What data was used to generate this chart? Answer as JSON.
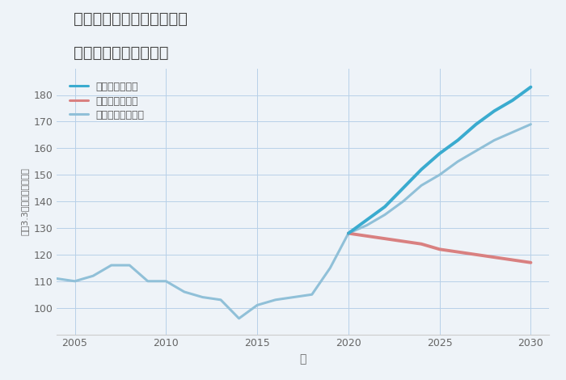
{
  "title_line1": "兵庫県西宮市今津山中町の",
  "title_line2": "中古戸建ての価格推移",
  "xlabel": "年",
  "ylabel": "坪（3.3㎡）単価（万円）",
  "bg_color": "#eef3f8",
  "grid_color": "#b8d0e8",
  "normal_color": "#90c0d8",
  "good_color": "#3aabcf",
  "bad_color": "#d98080",
  "years_historical": [
    2004,
    2005,
    2006,
    2007,
    2008,
    2009,
    2010,
    2011,
    2012,
    2013,
    2014,
    2015,
    2016,
    2017,
    2018,
    2019,
    2020
  ],
  "values_historical": [
    111,
    110,
    112,
    116,
    116,
    110,
    110,
    106,
    104,
    103,
    96,
    101,
    103,
    104,
    105,
    115,
    128
  ],
  "years_forecast": [
    2020,
    2021,
    2022,
    2023,
    2024,
    2025,
    2026,
    2027,
    2028,
    2029,
    2030
  ],
  "values_good": [
    128,
    133,
    138,
    145,
    152,
    158,
    163,
    169,
    174,
    178,
    183
  ],
  "values_bad": [
    128,
    127,
    126,
    125,
    124,
    122,
    121,
    120,
    119,
    118,
    117
  ],
  "values_normal": [
    128,
    131,
    135,
    140,
    146,
    150,
    155,
    159,
    163,
    166,
    169
  ],
  "ylim": [
    90,
    190
  ],
  "xlim": [
    2004,
    2031
  ],
  "yticks": [
    100,
    110,
    120,
    130,
    140,
    150,
    160,
    170,
    180
  ],
  "xticks": [
    2005,
    2010,
    2015,
    2020,
    2025,
    2030
  ],
  "legend_labels": [
    "グッドシナリオ",
    "バッドシナリオ",
    "ノーマルシナリオ"
  ]
}
